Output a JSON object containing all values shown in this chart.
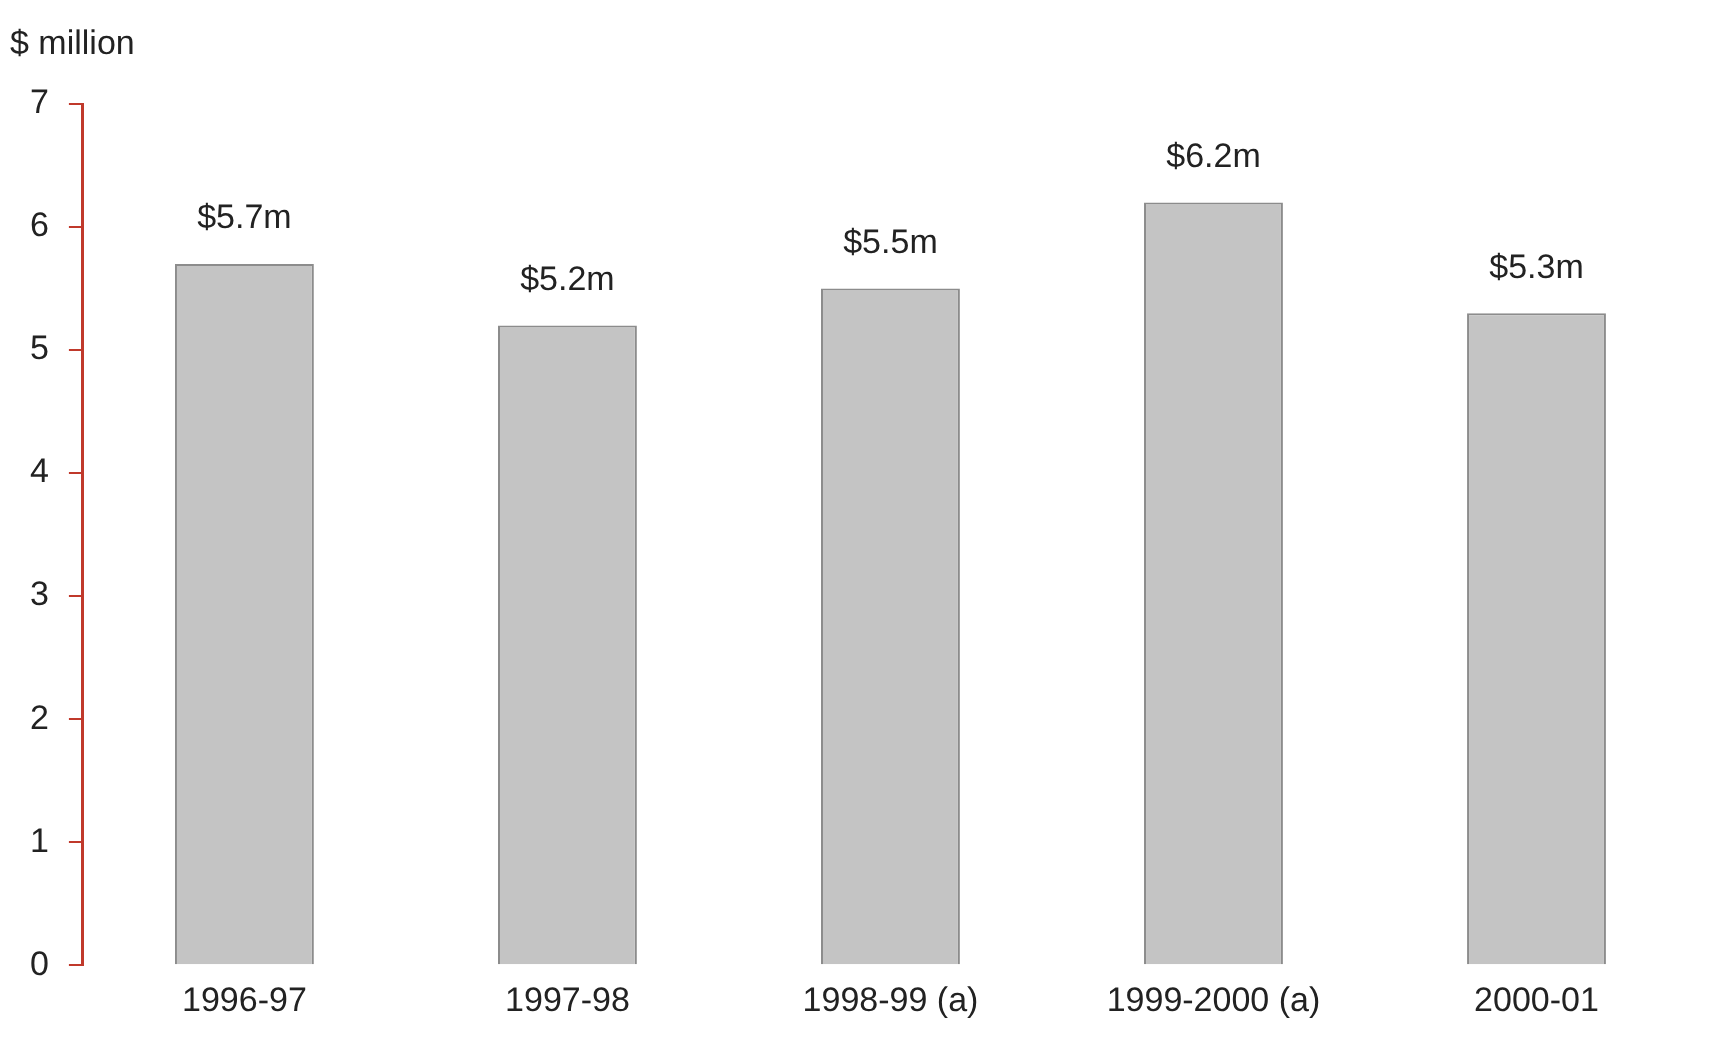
{
  "chart_data": {
    "type": "bar",
    "ylabel": "$ million",
    "categories": [
      "1996-97",
      "1997-98",
      "1998-99 (a)",
      "1999-2000 (a)",
      "2000-01"
    ],
    "values": [
      5.7,
      5.2,
      5.5,
      6.2,
      5.3
    ],
    "value_labels": [
      "$5.7m",
      "$5.2m",
      "$5.5m",
      "$6.2m",
      "$5.3m"
    ],
    "color": "#c4c4c4",
    "ylim": [
      0,
      7
    ],
    "yticks": [
      0,
      1,
      2,
      3,
      4,
      5,
      6,
      7
    ],
    "grid": false,
    "legend": false
  }
}
